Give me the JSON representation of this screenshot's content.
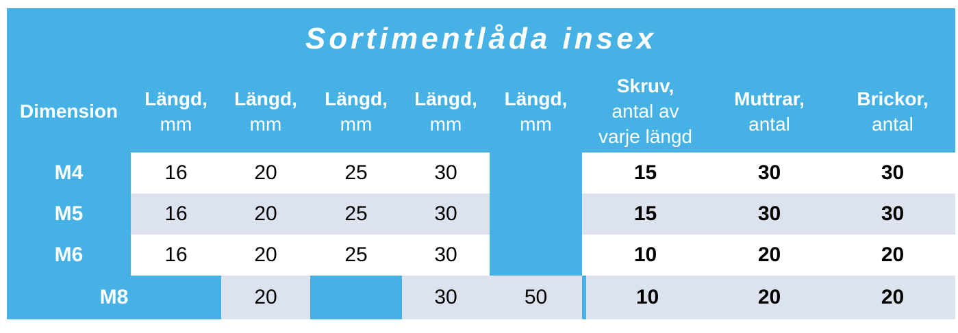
{
  "title": "Sortimentlåda insex",
  "table": {
    "headers": [
      {
        "label": "Dimension",
        "sub": ""
      },
      {
        "label": "Längd,",
        "sub": "mm"
      },
      {
        "label": "Längd,",
        "sub": "mm"
      },
      {
        "label": "Längd,",
        "sub": "mm"
      },
      {
        "label": "Längd,",
        "sub": "mm"
      },
      {
        "label": "Längd,",
        "sub": "mm"
      },
      {
        "label": "Skruv,",
        "sub": "antal av\nvarje längd"
      },
      {
        "label": "Muttrar,",
        "sub": "antal"
      },
      {
        "label": "Brickor,",
        "sub": "antal"
      }
    ],
    "rows": [
      {
        "dimension": "M4",
        "langd": [
          "16",
          "20",
          "25",
          "30",
          ""
        ],
        "skruv": "15",
        "muttrar": "30",
        "brickor": "30"
      },
      {
        "dimension": "M5",
        "langd": [
          "16",
          "20",
          "25",
          "30",
          ""
        ],
        "skruv": "15",
        "muttrar": "30",
        "brickor": "30"
      },
      {
        "dimension": "M6",
        "langd": [
          "16",
          "20",
          "25",
          "30",
          ""
        ],
        "skruv": "10",
        "muttrar": "20",
        "brickor": "20"
      },
      {
        "dimension": "M8",
        "langd": [
          "",
          "20",
          "",
          "30",
          "50"
        ],
        "skruv": "10",
        "muttrar": "20",
        "brickor": "20"
      }
    ]
  },
  "colors": {
    "header_blue": "#46b1e5",
    "row_gray": "#dde3ee",
    "row_white": "#ffffff",
    "header_text": "#ffffff",
    "cell_text": "#000000"
  }
}
